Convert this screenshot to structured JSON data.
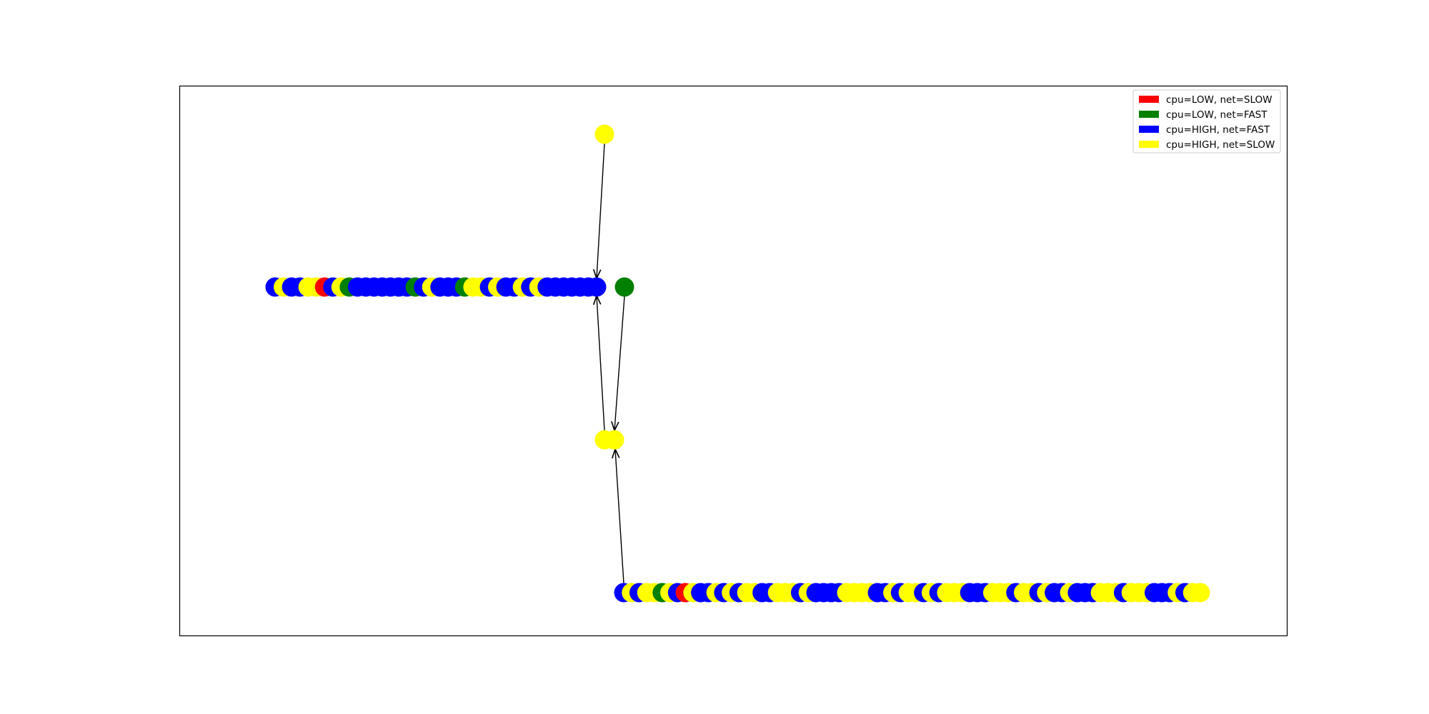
{
  "colors": {
    "red": "#ff0000",
    "green": "#008000",
    "blue": "#0000ff",
    "yellow": "#ffff00",
    "edge": "#000000",
    "frame": "#000000"
  },
  "legend": {
    "placement": "top-right",
    "items": [
      {
        "label": "cpu=LOW, net=SLOW",
        "color": "red"
      },
      {
        "label": "cpu=LOW, net=FAST",
        "color": "green"
      },
      {
        "label": "cpu=HIGH, net=FAST",
        "color": "blue"
      },
      {
        "label": "cpu=HIGH, net=SLOW",
        "color": "yellow"
      }
    ]
  },
  "graph": {
    "top_node": {
      "color": "yellow"
    },
    "middle_left_group": {
      "count": 40,
      "colors": [
        "blue",
        "yellow",
        "blue",
        "blue",
        "yellow",
        "yellow",
        "red",
        "blue",
        "yellow",
        "green",
        "blue",
        "blue",
        "blue",
        "blue",
        "blue",
        "blue",
        "blue",
        "green",
        "blue",
        "yellow",
        "blue",
        "blue",
        "blue",
        "green",
        "yellow",
        "yellow",
        "blue",
        "yellow",
        "blue",
        "blue",
        "yellow",
        "blue",
        "yellow",
        "blue",
        "blue",
        "blue",
        "blue",
        "blue",
        "blue",
        "blue"
      ]
    },
    "middle_right_node": {
      "color": "green"
    },
    "center_pair": {
      "colors": [
        "yellow",
        "yellow"
      ]
    },
    "bottom_group": {
      "count": 76,
      "colors": [
        "blue",
        "yellow",
        "blue",
        "yellow",
        "yellow",
        "green",
        "yellow",
        "blue",
        "red",
        "yellow",
        "blue",
        "blue",
        "yellow",
        "blue",
        "yellow",
        "blue",
        "yellow",
        "yellow",
        "blue",
        "blue",
        "yellow",
        "yellow",
        "yellow",
        "blue",
        "yellow",
        "blue",
        "blue",
        "blue",
        "blue",
        "yellow",
        "yellow",
        "yellow",
        "yellow",
        "blue",
        "blue",
        "yellow",
        "blue",
        "yellow",
        "yellow",
        "blue",
        "yellow",
        "blue",
        "yellow",
        "yellow",
        "yellow",
        "blue",
        "blue",
        "blue",
        "yellow",
        "yellow",
        "yellow",
        "blue",
        "yellow",
        "yellow",
        "blue",
        "yellow",
        "blue",
        "blue",
        "yellow",
        "blue",
        "blue",
        "blue",
        "yellow",
        "yellow",
        "yellow",
        "blue",
        "yellow",
        "yellow",
        "yellow",
        "blue",
        "blue",
        "blue",
        "yellow",
        "blue",
        "yellow",
        "yellow"
      ]
    },
    "edges": [
      {
        "from": "top_node",
        "to": "middle_left_group"
      },
      {
        "from": "center_pair",
        "to": "middle_left_group"
      },
      {
        "from": "middle_right_node",
        "to": "center_pair"
      },
      {
        "from": "bottom_group",
        "to": "center_pair"
      }
    ]
  }
}
